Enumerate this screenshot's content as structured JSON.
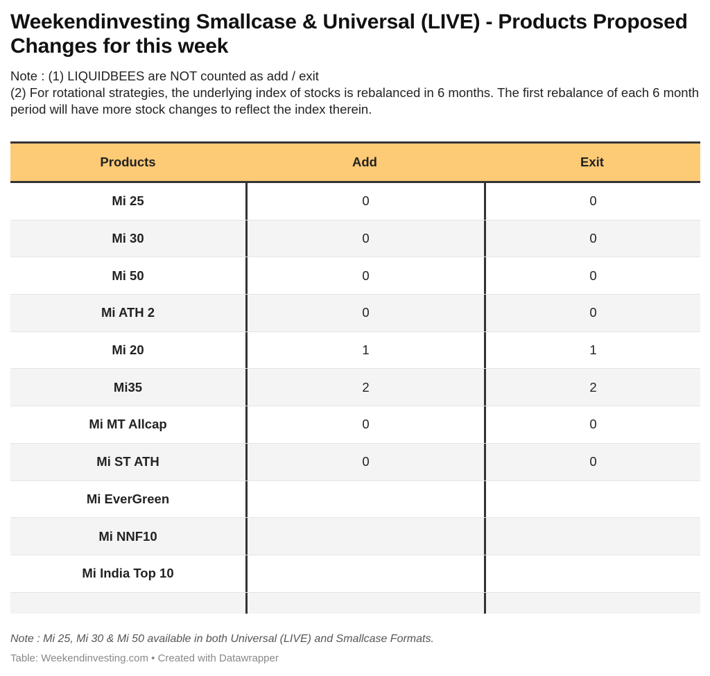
{
  "title": "Weekendinvesting Smallcase & Universal (LIVE) - Products Proposed Changes for this week",
  "notes": [
    "Note : (1) LIQUIDBEES are NOT counted as add / exit",
    "(2) For rotational strategies, the underlying index of stocks is rebalanced in 6 months. The first rebalance of each 6 month period will have more stock changes to reflect the index therein."
  ],
  "table": {
    "headers": [
      "Products",
      "Add",
      "Exit"
    ],
    "rows": [
      {
        "product": "Mi 25",
        "add": "0",
        "exit": "0"
      },
      {
        "product": "Mi 30",
        "add": "0",
        "exit": "0"
      },
      {
        "product": "Mi 50",
        "add": "0",
        "exit": "0"
      },
      {
        "product": "Mi ATH 2",
        "add": "0",
        "exit": "0"
      },
      {
        "product": "Mi 20",
        "add": "1",
        "exit": "1"
      },
      {
        "product": "Mi35",
        "add": "2",
        "exit": "2"
      },
      {
        "product": "Mi MT Allcap",
        "add": "0",
        "exit": "0"
      },
      {
        "product": "Mi ST ATH",
        "add": "0",
        "exit": "0"
      },
      {
        "product": "Mi EverGreen",
        "add": "",
        "exit": ""
      },
      {
        "product": "Mi NNF10",
        "add": "",
        "exit": ""
      },
      {
        "product": "Mi India Top 10",
        "add": "",
        "exit": ""
      }
    ]
  },
  "footnote": "Note : Mi 25, Mi 30 & Mi 50 available in both Universal (LIVE) and Smallcase Formats.",
  "source": "Table: Weekendinvesting.com • Created with Datawrapper",
  "colors": {
    "header_bg": "#fdca75",
    "alt_row_bg": "#f4f4f4",
    "rule": "#333333"
  }
}
